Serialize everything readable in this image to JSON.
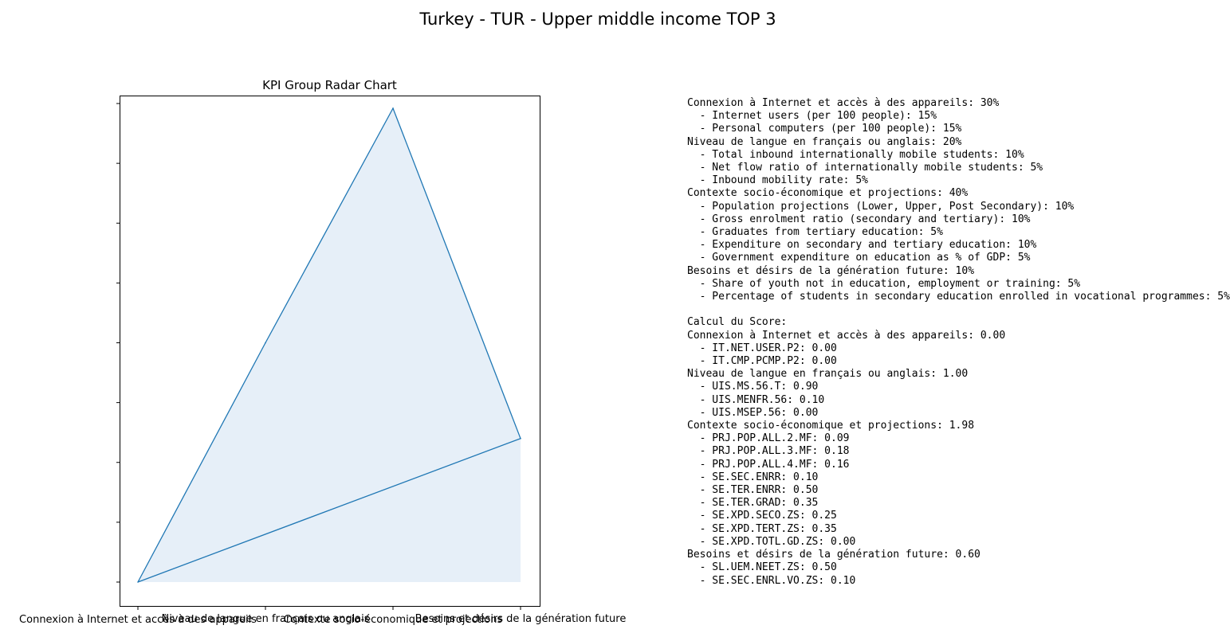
{
  "figure_title": "Turkey - TUR - Upper middle income TOP 3",
  "chart_data": {
    "type": "line",
    "title": "KPI Group Radar Chart",
    "categories": [
      "Connexion à Internet et accès à des appareils",
      "Niveau de langue en français ou anglais",
      "Contexte socio-économique et projections",
      "Besoins et désirs de la génération future"
    ],
    "values": [
      0.0,
      1.0,
      1.98,
      0.6
    ],
    "ylim": [
      0,
      2.0
    ],
    "fill": true,
    "grid": false,
    "color": "#1f77b4",
    "fill_color": "#e6eff8",
    "y_tick_labels_shown": false
  },
  "info_lines": [
    "Connexion à Internet et accès à des appareils: 30%",
    "  - Internet users (per 100 people): 15%",
    "  - Personal computers (per 100 people): 15%",
    "Niveau de langue en français ou anglais: 20%",
    "  - Total inbound internationally mobile students: 10%",
    "  - Net flow ratio of internationally mobile students: 5%",
    "  - Inbound mobility rate: 5%",
    "Contexte socio-économique et projections: 40%",
    "  - Population projections (Lower, Upper, Post Secondary): 10%",
    "  - Gross enrolment ratio (secondary and tertiary): 10%",
    "  - Graduates from tertiary education: 5%",
    "  - Expenditure on secondary and tertiary education: 10%",
    "  - Government expenditure on education as % of GDP: 5%",
    "Besoins et désirs de la génération future: 10%",
    "  - Share of youth not in education, employment or training: 5%",
    "  - Percentage of students in secondary education enrolled in vocational programmes: 5%",
    "",
    "Calcul du Score:",
    "Connexion à Internet et accès à des appareils: 0.00",
    "  - IT.NET.USER.P2: 0.00",
    "  - IT.CMP.PCMP.P2: 0.00",
    "Niveau de langue en français ou anglais: 1.00",
    "  - UIS.MS.56.T: 0.90",
    "  - UIS.MENFR.56: 0.10",
    "  - UIS.MSEP.56: 0.00",
    "Contexte socio-économique et projections: 1.98",
    "  - PRJ.POP.ALL.2.MF: 0.09",
    "  - PRJ.POP.ALL.3.MF: 0.18",
    "  - PRJ.POP.ALL.4.MF: 0.16",
    "  - SE.SEC.ENRR: 0.10",
    "  - SE.TER.ENRR: 0.50",
    "  - SE.TER.GRAD: 0.35",
    "  - SE.XPD.SECO.ZS: 0.25",
    "  - SE.XPD.TERT.ZS: 0.35",
    "  - SE.XPD.TOTL.GD.ZS: 0.00",
    "Besoins et désirs de la génération future: 0.60",
    "  - SL.UEM.NEET.ZS: 0.50",
    "  - SE.SEC.ENRL.VO.ZS: 0.10"
  ]
}
